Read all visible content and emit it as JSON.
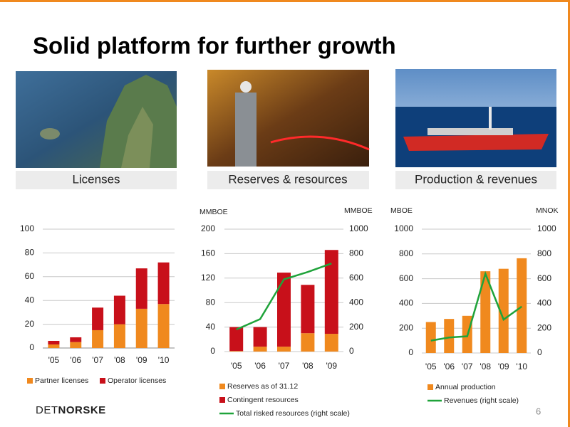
{
  "title": "Solid platform for further growth",
  "panels": [
    "Licenses",
    "Reserves & resources",
    "Production & revenues"
  ],
  "logo": {
    "light": "DET",
    "bold": "NORSKE"
  },
  "page_number": "6",
  "chart_data": [
    {
      "type": "bar",
      "stacked": true,
      "grid": true,
      "categories": [
        "'05",
        "'06",
        "'07",
        "'08",
        "'09",
        "'10"
      ],
      "ylim": [
        0,
        100
      ],
      "yticks": [
        0,
        20,
        40,
        60,
        80,
        100
      ],
      "series": [
        {
          "name": "Partner licenses",
          "color": "#f0891e",
          "values": [
            3,
            5,
            15,
            20,
            33,
            37
          ]
        },
        {
          "name": "Operator licenses",
          "color": "#c8101a",
          "values": [
            3,
            4,
            19,
            24,
            34,
            35
          ]
        }
      ]
    },
    {
      "type": "bar",
      "stacked": true,
      "grid": true,
      "y_label": "MMBOE",
      "y2_label": "MMBOE",
      "categories": [
        "'05",
        "'06",
        "'07",
        "'08",
        "'09"
      ],
      "ylim": [
        0,
        200
      ],
      "yticks": [
        0,
        40,
        80,
        120,
        160,
        200
      ],
      "y2lim": [
        0,
        1000
      ],
      "y2ticks": [
        0,
        200,
        400,
        600,
        800,
        1000
      ],
      "series": [
        {
          "name": "Reserves as of 31.12",
          "color": "#f0891e",
          "values": [
            1,
            8,
            8,
            30,
            29
          ]
        },
        {
          "name": "Contingent resources",
          "color": "#c8101a",
          "values": [
            39,
            32,
            121,
            79,
            137
          ]
        },
        {
          "name": "Total risked resources (right scale)",
          "type": "line",
          "axis": "y2",
          "color": "#1fa33a",
          "values": [
            180,
            265,
            590,
            650,
            720
          ]
        }
      ]
    },
    {
      "type": "bar",
      "stacked": true,
      "grid": true,
      "y_label": "MBOE",
      "y2_label": "MNOK",
      "categories": [
        "'05",
        "'06",
        "'07",
        "'08",
        "'09",
        "'10"
      ],
      "ylim": [
        0,
        1000
      ],
      "yticks": [
        0,
        200,
        400,
        600,
        800,
        1000
      ],
      "y2lim": [
        0,
        1000
      ],
      "y2ticks": [
        0,
        200,
        400,
        600,
        800,
        1000
      ],
      "series": [
        {
          "name": "Annual production",
          "color": "#f0891e",
          "values": [
            250,
            275,
            300,
            660,
            680,
            765
          ]
        },
        {
          "name": "Revenues  (right scale)",
          "type": "line",
          "axis": "y2",
          "color": "#1fa33a",
          "values": [
            100,
            125,
            135,
            640,
            270,
            375
          ]
        }
      ]
    }
  ]
}
